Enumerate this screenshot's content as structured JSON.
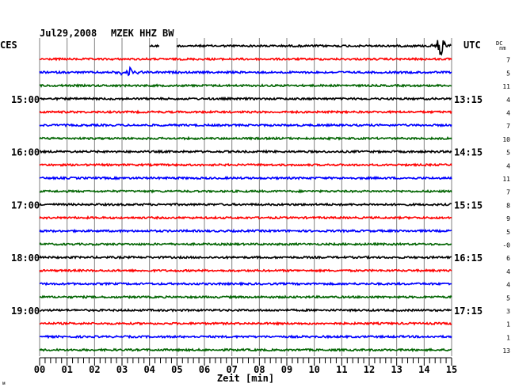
{
  "header": {
    "date": "Jul29,2008",
    "station": "MZEK HHZ BW"
  },
  "left_timezone": "CES",
  "right_timezone": "UTC",
  "dc_header": {
    "top": "DC",
    "bottom": "nm"
  },
  "chart_data": {
    "type": "line",
    "title": "Jul29,2008   MZEK HHZ BW",
    "xlabel": "Zeit [min]",
    "xlim": [
      0,
      15
    ],
    "x_ticks": [
      "00",
      "01",
      "02",
      "03",
      "04",
      "05",
      "06",
      "07",
      "08",
      "09",
      "10",
      "11",
      "12",
      "13",
      "14",
      "15"
    ],
    "grid": true,
    "trace_colors": [
      "#000000",
      "#ff0000",
      "#0000ff",
      "#006400"
    ],
    "trace_count": 24,
    "left_hour_labels": [
      {
        "row": 4,
        "label": "15:00"
      },
      {
        "row": 8,
        "label": "16:00"
      },
      {
        "row": 12,
        "label": "17:00"
      },
      {
        "row": 16,
        "label": "18:00"
      },
      {
        "row": 20,
        "label": "19:00"
      }
    ],
    "right_hour_labels": [
      {
        "row": 4,
        "label": "13:15"
      },
      {
        "row": 8,
        "label": "14:15"
      },
      {
        "row": 12,
        "label": "15:15"
      },
      {
        "row": 16,
        "label": "16:15"
      },
      {
        "row": 20,
        "label": "17:15"
      }
    ],
    "dc_values": [
      "",
      "7",
      "5",
      "11",
      "4",
      "4",
      "7",
      "10",
      "5",
      "4",
      "11",
      "7",
      "8",
      "9",
      "5",
      "-0",
      "6",
      "4",
      "4",
      "5",
      "3",
      "1",
      "1",
      "13"
    ],
    "first_trace_segments_min": [
      [
        4.0,
        4.35
      ],
      [
        5.0,
        15.0
      ]
    ],
    "events": [
      {
        "row": 0,
        "minute": 14.6,
        "amplitude": "large"
      },
      {
        "row": 2,
        "minute": 3.3,
        "amplitude": "medium"
      }
    ]
  }
}
